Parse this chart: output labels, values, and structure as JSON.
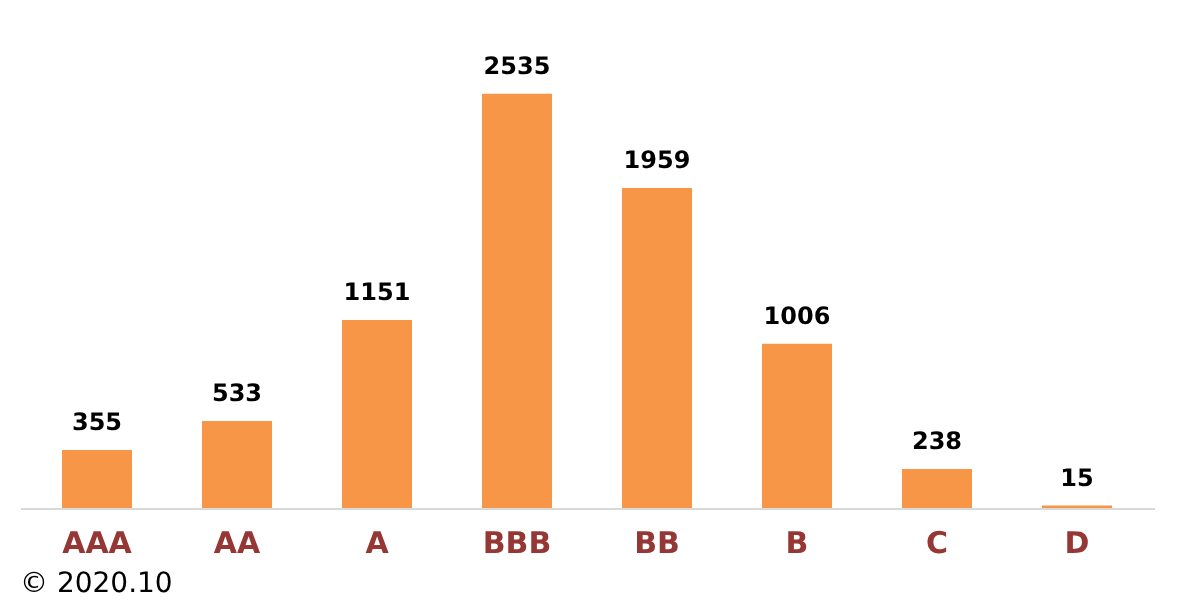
{
  "chart_data": {
    "type": "bar",
    "categories": [
      "AAA",
      "AA",
      "A",
      "BBB",
      "BB",
      "B",
      "C",
      "D"
    ],
    "values": [
      355,
      533,
      1151,
      2535,
      1959,
      1006,
      238,
      15
    ],
    "color": "#f79646",
    "data_labels": true,
    "tick_labels": "x",
    "grid": false,
    "annotations": [
      "© 2020.10"
    ]
  }
}
